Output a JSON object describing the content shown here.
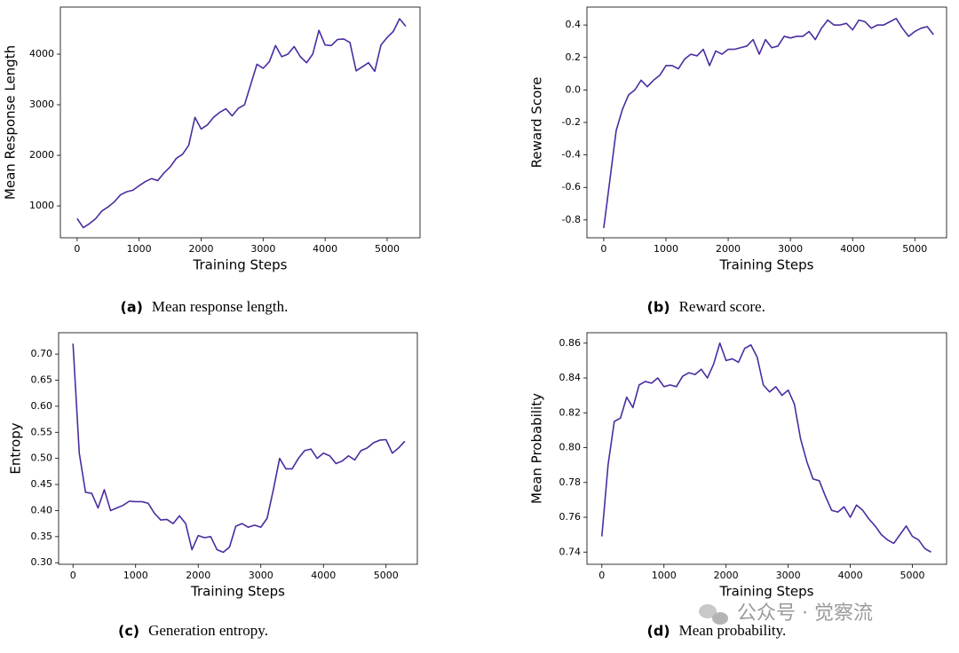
{
  "chart_data": [
    {
      "type": "line",
      "x_label": "Training Steps",
      "y_label": "Mean Response Length",
      "caption_label": "(a)",
      "caption": "Mean response length.",
      "color": "#4b2ca0",
      "x": [
        0,
        100,
        200,
        300,
        400,
        500,
        600,
        700,
        800,
        900,
        1000,
        1100,
        1200,
        1300,
        1400,
        1500,
        1600,
        1700,
        1800,
        1900,
        2000,
        2100,
        2200,
        2300,
        2400,
        2500,
        2600,
        2700,
        2800,
        2900,
        3000,
        3100,
        3200,
        3300,
        3400,
        3500,
        3600,
        3700,
        3800,
        3900,
        4000,
        4100,
        4200,
        4300,
        4400,
        4500,
        4600,
        4700,
        4800,
        4900,
        5000,
        5100,
        5200,
        5300
      ],
      "values": [
        750,
        570,
        650,
        750,
        900,
        980,
        1080,
        1220,
        1280,
        1310,
        1400,
        1480,
        1540,
        1500,
        1650,
        1770,
        1940,
        2020,
        2200,
        2750,
        2520,
        2600,
        2750,
        2850,
        2920,
        2780,
        2930,
        3000,
        3400,
        3800,
        3720,
        3850,
        4170,
        3950,
        4000,
        4150,
        3950,
        3830,
        4000,
        4470,
        4180,
        4170,
        4290,
        4300,
        4230,
        3670,
        3750,
        3830,
        3660,
        4180,
        4330,
        4450,
        4700,
        4550
      ],
      "xlim": [
        -270,
        5530
      ],
      "ylim": [
        370,
        4930
      ],
      "xticks": [
        0,
        1000,
        2000,
        3000,
        4000,
        5000
      ],
      "yticks": [
        1000,
        2000,
        3000,
        4000
      ]
    },
    {
      "type": "line",
      "x_label": "Training Steps",
      "y_label": "Reward Score",
      "caption_label": "(b)",
      "caption": "Reward score.",
      "color": "#4b2ca0",
      "x": [
        0,
        100,
        200,
        300,
        400,
        500,
        600,
        700,
        800,
        900,
        1000,
        1100,
        1200,
        1300,
        1400,
        1500,
        1600,
        1700,
        1800,
        1900,
        2000,
        2100,
        2200,
        2300,
        2400,
        2500,
        2600,
        2700,
        2800,
        2900,
        3000,
        3100,
        3200,
        3300,
        3400,
        3500,
        3600,
        3700,
        3800,
        3900,
        4000,
        4100,
        4200,
        4300,
        4400,
        4500,
        4600,
        4700,
        4800,
        4900,
        5000,
        5100,
        5200,
        5300
      ],
      "values": [
        -0.85,
        -0.55,
        -0.25,
        -0.12,
        -0.03,
        0.0,
        0.06,
        0.02,
        0.06,
        0.09,
        0.15,
        0.15,
        0.13,
        0.19,
        0.22,
        0.21,
        0.25,
        0.15,
        0.24,
        0.22,
        0.25,
        0.25,
        0.26,
        0.27,
        0.31,
        0.22,
        0.31,
        0.26,
        0.27,
        0.33,
        0.32,
        0.33,
        0.33,
        0.36,
        0.31,
        0.38,
        0.43,
        0.4,
        0.4,
        0.41,
        0.37,
        0.43,
        0.42,
        0.38,
        0.4,
        0.4,
        0.42,
        0.44,
        0.38,
        0.33,
        0.36,
        0.38,
        0.39,
        0.34
      ],
      "xlim": [
        -270,
        5510
      ],
      "ylim": [
        -0.91,
        0.51
      ],
      "xticks": [
        0,
        1000,
        2000,
        3000,
        4000,
        5000
      ],
      "yticks": [
        -0.8,
        -0.6,
        -0.4,
        -0.2,
        {
          "value": 0,
          "label": "0.0"
        },
        0.2,
        0.4
      ]
    },
    {
      "type": "line",
      "x_label": "Training Steps",
      "y_label": "Entropy",
      "caption_label": "(c)",
      "caption": "Generation entropy.",
      "color": "#4b2ca0",
      "x": [
        0,
        100,
        200,
        300,
        400,
        500,
        600,
        700,
        800,
        900,
        1000,
        1100,
        1200,
        1300,
        1400,
        1500,
        1600,
        1700,
        1800,
        1900,
        2000,
        2100,
        2200,
        2300,
        2400,
        2500,
        2600,
        2700,
        2800,
        2900,
        3000,
        3100,
        3200,
        3300,
        3400,
        3500,
        3600,
        3700,
        3800,
        3900,
        4000,
        4100,
        4200,
        4300,
        4400,
        4500,
        4600,
        4700,
        4800,
        4900,
        5000,
        5100,
        5200,
        5300
      ],
      "values": [
        0.72,
        0.51,
        0.435,
        0.433,
        0.405,
        0.44,
        0.4,
        0.405,
        0.41,
        0.418,
        0.417,
        0.417,
        0.414,
        0.395,
        0.382,
        0.383,
        0.375,
        0.39,
        0.375,
        0.325,
        0.352,
        0.348,
        0.35,
        0.325,
        0.32,
        0.33,
        0.37,
        0.375,
        0.368,
        0.372,
        0.368,
        0.385,
        0.44,
        0.5,
        0.48,
        0.48,
        0.5,
        0.515,
        0.518,
        0.5,
        0.51,
        0.505,
        0.49,
        0.495,
        0.505,
        0.497,
        0.515,
        0.52,
        0.53,
        0.535,
        0.536,
        0.51,
        0.52,
        0.533
      ],
      "xlim": [
        -230,
        5500
      ],
      "ylim": [
        0.297,
        0.741
      ],
      "xticks": [
        0,
        1000,
        2000,
        3000,
        4000,
        5000
      ],
      "yticks": [
        {
          "value": 0.3,
          "label": "0.30"
        },
        0.35,
        {
          "value": 0.4,
          "label": "0.40"
        },
        0.45,
        {
          "value": 0.5,
          "label": "0.50"
        },
        0.55,
        {
          "value": 0.6,
          "label": "0.60"
        },
        0.65,
        {
          "value": 0.7,
          "label": "0.70"
        }
      ]
    },
    {
      "type": "line",
      "x_label": "Training Steps",
      "y_label": "Mean Probability",
      "caption_label": "(d)",
      "caption": "Mean probability.",
      "color": "#4b2ca0",
      "x": [
        0,
        100,
        200,
        300,
        400,
        500,
        600,
        700,
        800,
        900,
        1000,
        1100,
        1200,
        1300,
        1400,
        1500,
        1600,
        1700,
        1800,
        1900,
        2000,
        2100,
        2200,
        2300,
        2400,
        2500,
        2600,
        2700,
        2800,
        2900,
        3000,
        3100,
        3200,
        3300,
        3400,
        3500,
        3600,
        3700,
        3800,
        3900,
        4000,
        4100,
        4200,
        4300,
        4400,
        4500,
        4600,
        4700,
        4800,
        4900,
        5000,
        5100,
        5200,
        5300
      ],
      "values": [
        0.749,
        0.79,
        0.815,
        0.817,
        0.829,
        0.823,
        0.836,
        0.838,
        0.837,
        0.84,
        0.835,
        0.836,
        0.835,
        0.841,
        0.843,
        0.842,
        0.845,
        0.84,
        0.848,
        0.86,
        0.85,
        0.851,
        0.849,
        0.857,
        0.859,
        0.852,
        0.836,
        0.832,
        0.835,
        0.83,
        0.833,
        0.825,
        0.805,
        0.792,
        0.782,
        0.781,
        0.772,
        0.764,
        0.763,
        0.766,
        0.76,
        0.767,
        0.764,
        0.759,
        0.755,
        0.75,
        0.747,
        0.745,
        0.75,
        0.755,
        0.749,
        0.747,
        0.742,
        0.74
      ],
      "xlim": [
        -240,
        5550
      ],
      "ylim": [
        0.733,
        0.866
      ],
      "xticks": [
        0,
        1000,
        2000,
        3000,
        4000,
        5000
      ],
      "yticks": [
        0.74,
        0.76,
        0.78,
        {
          "value": 0.8,
          "label": "0.80"
        },
        0.82,
        0.84,
        0.86
      ]
    }
  ],
  "watermark": "公众号 · 觉察流"
}
